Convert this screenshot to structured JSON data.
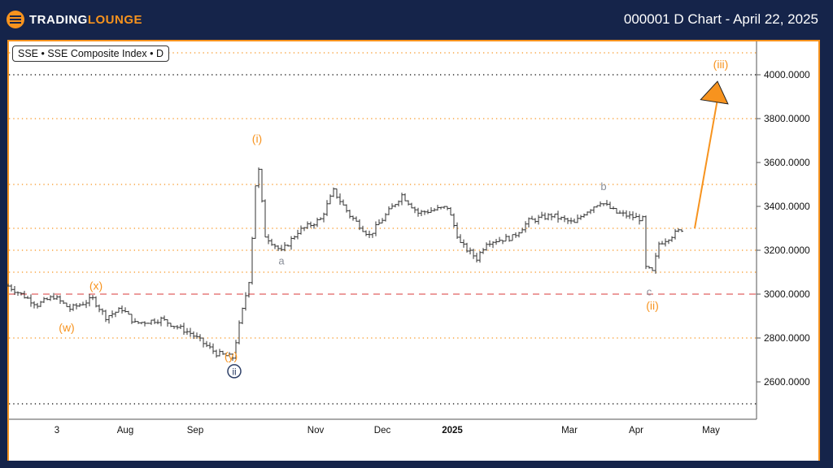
{
  "header": {
    "logo_part1": "TRADING",
    "logo_part2": "LOUNGE",
    "title": "000001 D Chart - April 22, 2025"
  },
  "legend": "SSE • SSE Composite Index • D",
  "colors": {
    "accent": "#f7931e",
    "background": "#15244a",
    "bars": "#333333",
    "dashed": "#e06060",
    "wave_gray": "#8a8f99",
    "circle_label": "#2c3e66"
  },
  "chart_data": {
    "type": "line",
    "title": "000001 D Chart - April 22, 2025",
    "ylim": [
      2420,
      4200
    ],
    "xlim": [
      0,
      230
    ],
    "y_ticks": [
      4000,
      3800,
      3600,
      3400,
      3200,
      3000,
      2800,
      2600
    ],
    "y_tick_labels": [
      "4000.0000",
      "3800.0000",
      "3600.0000",
      "3400.0000",
      "3200.0000",
      "3000.0000",
      "2800.0000",
      "2600.0000"
    ],
    "x_ticks": [
      {
        "day": 15,
        "label": "3"
      },
      {
        "day": 36,
        "label": "Aug"
      },
      {
        "day": 57.5,
        "label": "Sep"
      },
      {
        "day": 94.5,
        "label": "Nov"
      },
      {
        "day": 115,
        "label": "Dec"
      },
      {
        "day": 136.5,
        "label": "2025"
      },
      {
        "day": 172.5,
        "label": "Mar"
      },
      {
        "day": 193,
        "label": "Apr"
      },
      {
        "day": 216,
        "label": "May"
      }
    ],
    "orange_levels": [
      4100,
      3800,
      3500,
      3300,
      3200,
      3100,
      2800
    ],
    "black_levels": [
      4000,
      2500
    ],
    "dashed_level": 3000,
    "price_waypoints": [
      [
        0,
        3037
      ],
      [
        9,
        2952
      ],
      [
        14,
        2989
      ],
      [
        19,
        2933
      ],
      [
        26,
        2978
      ],
      [
        30,
        2896
      ],
      [
        35,
        2933
      ],
      [
        39,
        2867
      ],
      [
        47,
        2885
      ],
      [
        56,
        2822
      ],
      [
        64,
        2730
      ],
      [
        69,
        2711
      ],
      [
        71,
        2859
      ],
      [
        74,
        3063
      ],
      [
        75.5,
        3359
      ],
      [
        76.5,
        3637
      ],
      [
        79,
        3267
      ],
      [
        84,
        3193
      ],
      [
        89,
        3285
      ],
      [
        96,
        3341
      ],
      [
        100,
        3470
      ],
      [
        105,
        3359
      ],
      [
        111,
        3267
      ],
      [
        117,
        3378
      ],
      [
        121,
        3452
      ],
      [
        126,
        3370
      ],
      [
        135,
        3396
      ],
      [
        139,
        3230
      ],
      [
        144,
        3163
      ],
      [
        147,
        3237
      ],
      [
        155,
        3259
      ],
      [
        160,
        3333
      ],
      [
        167,
        3359
      ],
      [
        174,
        3322
      ],
      [
        177,
        3370
      ],
      [
        182,
        3422
      ],
      [
        187,
        3370
      ],
      [
        195,
        3341
      ],
      [
        196,
        3119
      ],
      [
        198,
        3100
      ],
      [
        200,
        3230
      ],
      [
        207,
        3296
      ]
    ],
    "projection": {
      "from": [
        211,
        3300
      ],
      "to": [
        218,
        3970
      ]
    },
    "wave_labels": [
      {
        "text": "(i)",
        "day": 76.5,
        "price": 3690,
        "style": "orange"
      },
      {
        "text": "ii",
        "day": 69.5,
        "price": 2630,
        "style": "circle"
      },
      {
        "text": "(w)",
        "day": 18,
        "price": 2830,
        "style": "orange"
      },
      {
        "text": "(x)",
        "day": 27,
        "price": 3020,
        "style": "orange"
      },
      {
        "text": "(y)",
        "day": 68.5,
        "price": 2700,
        "style": "orange"
      },
      {
        "text": "a",
        "day": 84,
        "price": 3135,
        "style": "gray"
      },
      {
        "text": "b",
        "day": 183,
        "price": 3475,
        "style": "gray"
      },
      {
        "text": "c",
        "day": 197,
        "price": 2995,
        "style": "gray"
      },
      {
        "text": "(ii)",
        "day": 198,
        "price": 2930,
        "style": "orange"
      },
      {
        "text": "(iii)",
        "day": 219,
        "price": 4030,
        "style": "orange"
      }
    ]
  }
}
